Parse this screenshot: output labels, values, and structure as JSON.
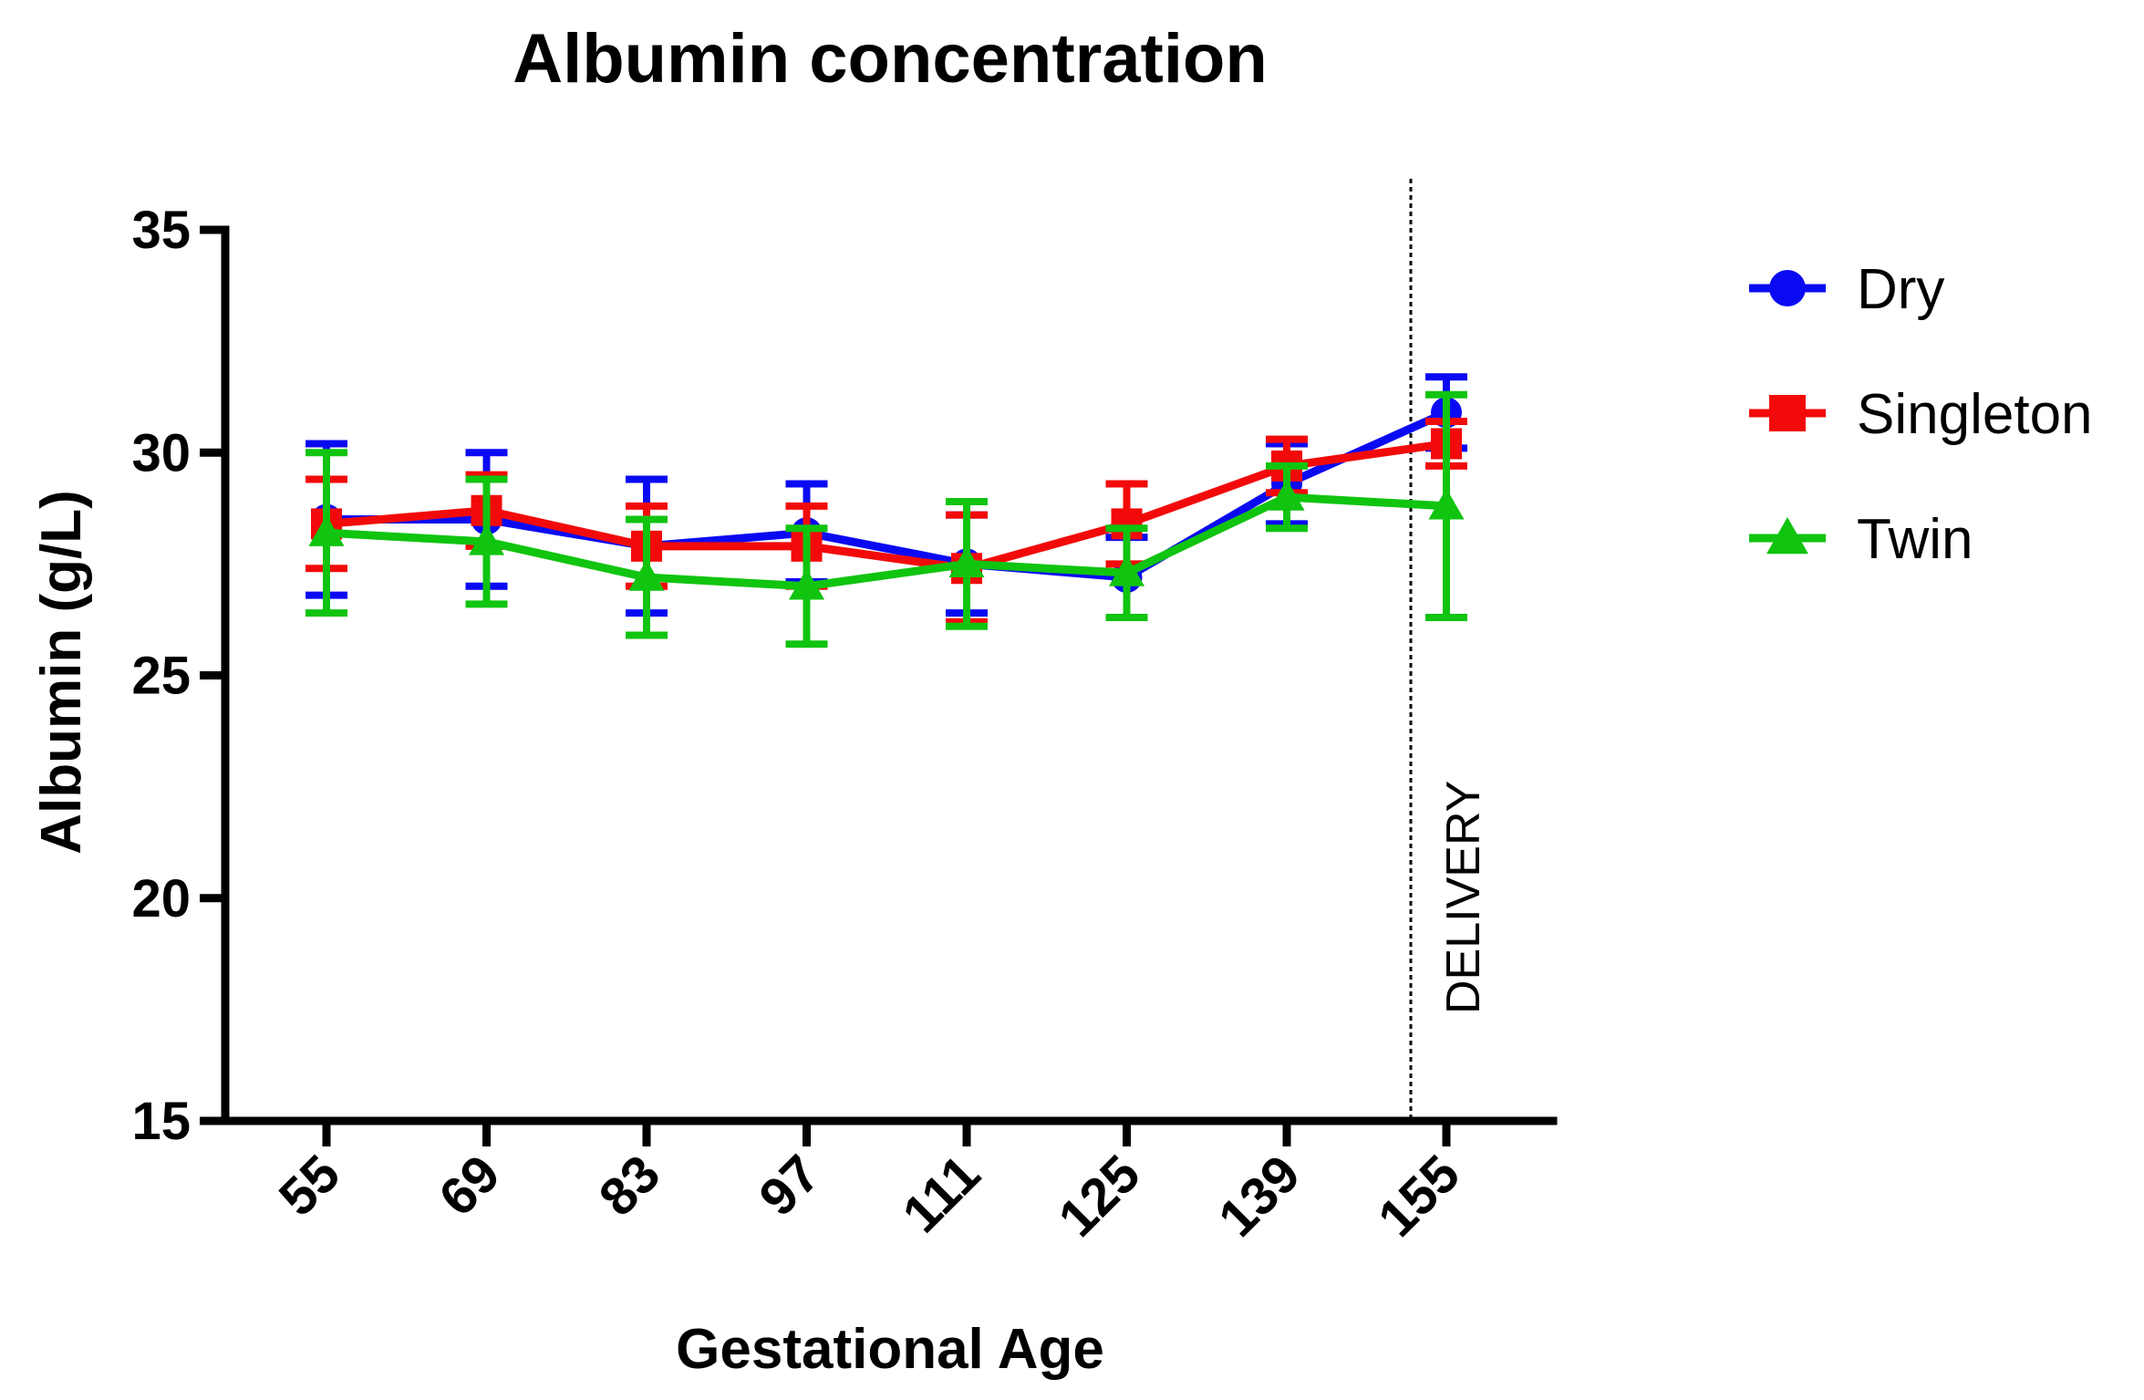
{
  "chart_data": {
    "type": "line",
    "title": "Albumin concentration",
    "xlabel": "Gestational Age",
    "ylabel": "Albumin (g/L)",
    "categories": [
      "55",
      "69",
      "83",
      "97",
      "111",
      "125",
      "139",
      "155"
    ],
    "ylim": [
      15,
      35
    ],
    "yticks": [
      "15",
      "20",
      "25",
      "30",
      "35"
    ],
    "grid": false,
    "legend_position": "right",
    "annotation": {
      "text": "DELIVERY",
      "between_categories": [
        "139",
        "155"
      ]
    },
    "series": [
      {
        "name": "Dry",
        "color": "#0a0af2",
        "marker": "circle",
        "values": [
          28.5,
          28.5,
          27.9,
          28.2,
          27.5,
          27.2,
          29.3,
          30.9
        ],
        "err": [
          1.7,
          1.5,
          1.5,
          1.1,
          1.1,
          0.9,
          0.9,
          0.8
        ]
      },
      {
        "name": "Singleton",
        "color": "#f20a0a",
        "marker": "square",
        "values": [
          28.4,
          28.7,
          27.9,
          27.9,
          27.4,
          28.4,
          29.7,
          30.2
        ],
        "err": [
          1.0,
          0.8,
          0.9,
          0.9,
          1.2,
          0.9,
          0.6,
          0.5
        ]
      },
      {
        "name": "Twin",
        "color": "#10c410",
        "marker": "triangle",
        "values": [
          28.2,
          28.0,
          27.2,
          27.0,
          27.5,
          27.3,
          29.0,
          28.8
        ],
        "err": [
          1.8,
          1.4,
          1.3,
          1.3,
          1.4,
          1.0,
          0.7,
          2.5
        ]
      }
    ]
  }
}
